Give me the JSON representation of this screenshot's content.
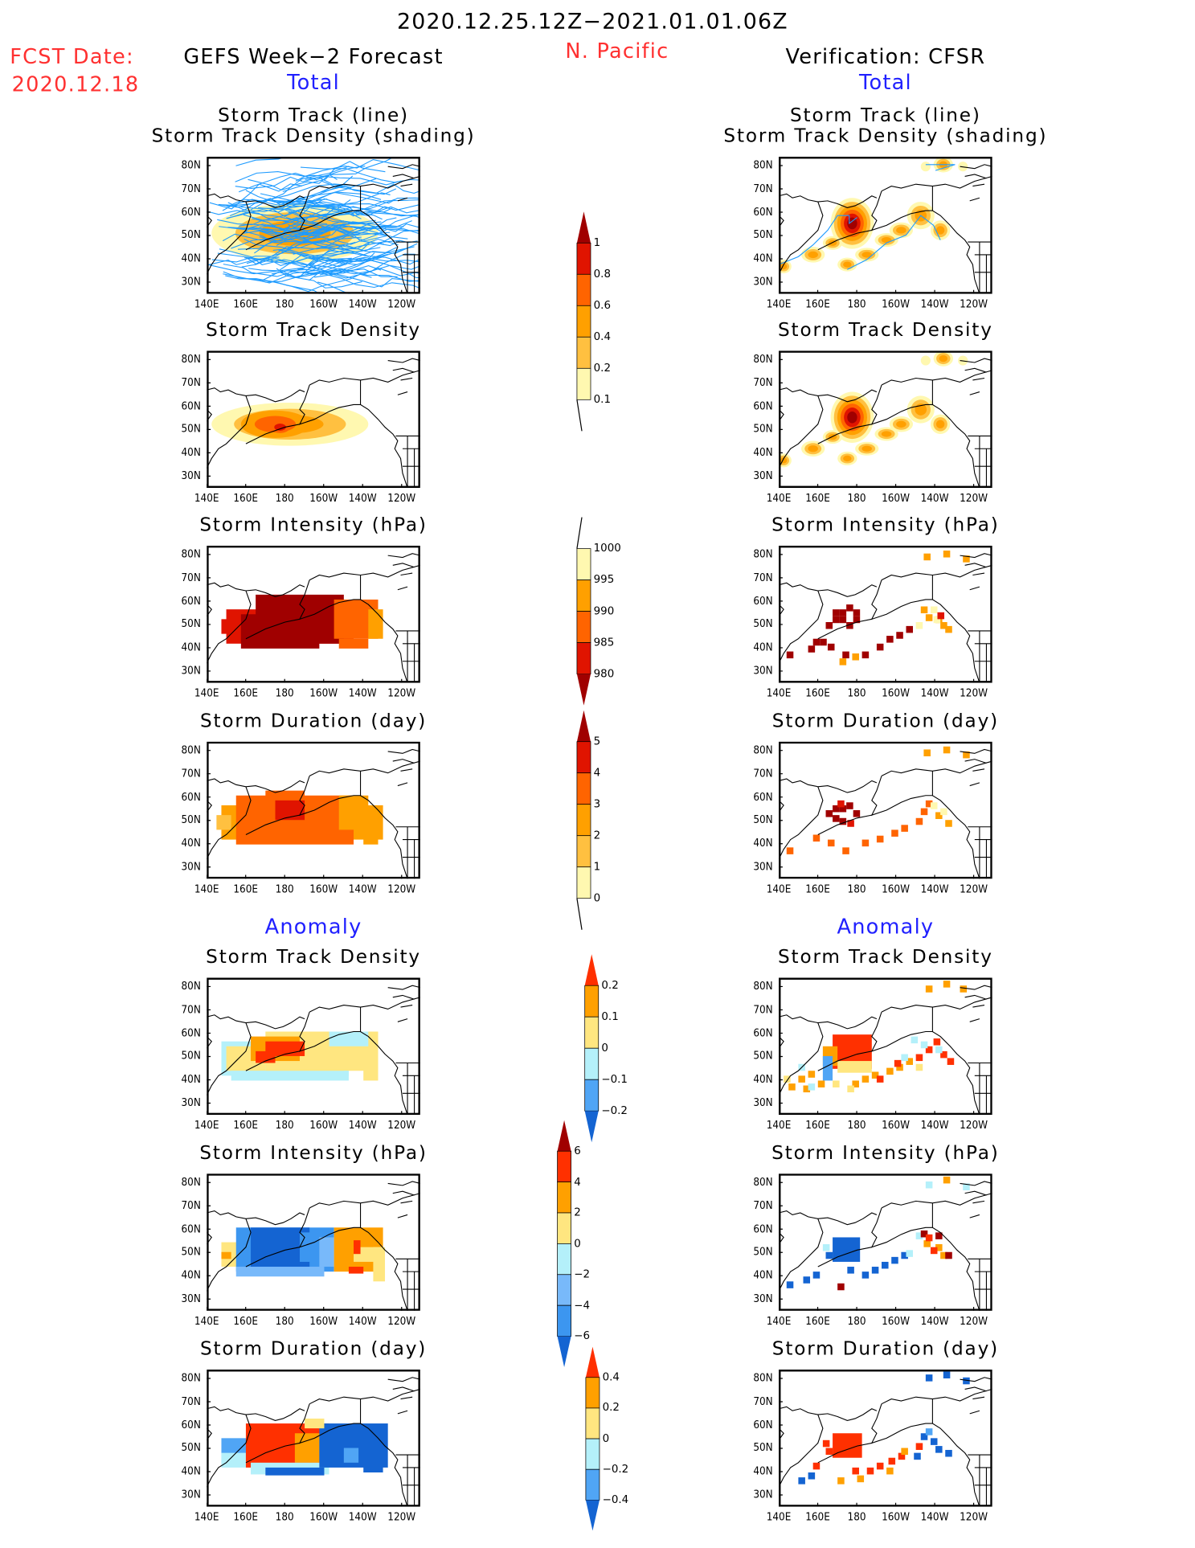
{
  "header": {
    "period": "2020.12.25.12Z−2021.01.01.06Z",
    "region": "N. Pacific",
    "fcst_label": "FCST Date:",
    "fcst_date": "2020.12.18",
    "left_title": "GEFS Week−2 Forecast",
    "right_title": "Verification: CFSR",
    "total_label": "Total",
    "anomaly_label": "Anomaly"
  },
  "axes": {
    "lat_labels": [
      "80N",
      "70N",
      "60N",
      "50N",
      "40N",
      "30N"
    ],
    "lon_labels": [
      "140E",
      "160E",
      "180",
      "160W",
      "140W",
      "120W"
    ]
  },
  "panels": [
    {
      "title": "Storm Track (line)",
      "title2": "Storm Track Density (shading)"
    },
    {
      "title": "Storm Track Density"
    },
    {
      "title": "Storm Intensity (hPa)"
    },
    {
      "title": "Storm Duration (day)"
    },
    {
      "title": "Storm Track Density"
    },
    {
      "title": "Storm Intensity (hPa)"
    },
    {
      "title": "Storm Duration (day)"
    }
  ],
  "colorbars": [
    {
      "name": "track-density",
      "labels": [
        "1",
        "0.8",
        "0.6",
        "0.4",
        "0.2",
        "0.1"
      ],
      "colors": [
        "#a00000",
        "#e01400",
        "#ff6400",
        "#ffa000",
        "#ffc040",
        "#fff8b0"
      ]
    },
    {
      "name": "intensity",
      "labels": [
        "1000",
        "995",
        "990",
        "985",
        "980"
      ],
      "colors": [
        "#fff8b0",
        "#ffa000",
        "#ff6400",
        "#e01400",
        "#a00000"
      ]
    },
    {
      "name": "duration",
      "labels": [
        "5",
        "4",
        "3",
        "2",
        "1",
        "0"
      ],
      "colors": [
        "#a00000",
        "#e01400",
        "#ff6400",
        "#ffa000",
        "#ffc040",
        "#fff8b0"
      ]
    },
    {
      "name": "density-anomaly",
      "labels": [
        "0.2",
        "0.1",
        "0",
        "−0.1",
        "−0.2"
      ],
      "colors": [
        "#ff3000",
        "#ffa000",
        "#ffe680",
        "#b4f0fa",
        "#50a5f5",
        "#1464d2"
      ]
    },
    {
      "name": "intensity-anomaly",
      "labels": [
        "6",
        "4",
        "2",
        "0",
        "−2",
        "−4",
        "−6"
      ],
      "colors": [
        "#a00000",
        "#ff3000",
        "#ffa000",
        "#ffe680",
        "#b4f0fa",
        "#78b9fa",
        "#3c96f0",
        "#1464d2"
      ]
    },
    {
      "name": "duration-anomaly",
      "labels": [
        "0.4",
        "0.2",
        "0",
        "−0.2",
        "−0.4"
      ],
      "colors": [
        "#ff3000",
        "#ffa000",
        "#ffe680",
        "#b4f0fa",
        "#50a5f5",
        "#1464d2"
      ]
    }
  ],
  "colors": {
    "track_line": "#1e9bff",
    "header_red": "#ff3030",
    "header_blue": "#2020ff"
  }
}
